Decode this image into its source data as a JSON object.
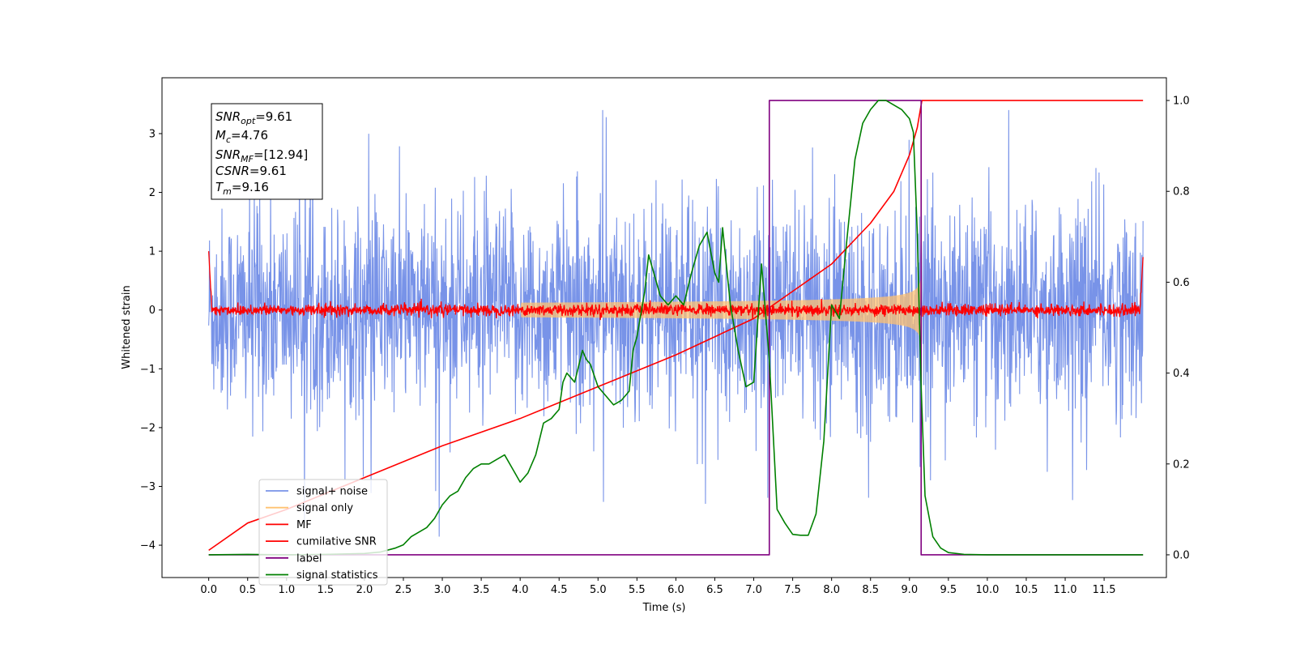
{
  "chart_data": {
    "type": "line",
    "xlabel": "Time (s)",
    "ylabel": "Whitened strain",
    "xlim": [
      -0.6,
      12.3
    ],
    "ylim": [
      -4.55,
      3.95
    ],
    "y2lim": [
      -0.05,
      1.05
    ],
    "x_ticks": [
      "0.0",
      "0.5",
      "1.0",
      "1.5",
      "2.0",
      "2.5",
      "3.0",
      "3.5",
      "4.0",
      "4.5",
      "5.0",
      "5.5",
      "6.0",
      "6.5",
      "7.0",
      "7.5",
      "8.0",
      "8.5",
      "9.0",
      "9.5",
      "10.0",
      "10.5",
      "11.0",
      "11.5"
    ],
    "y_ticks": [
      "3",
      "2",
      "1",
      "0",
      "−1",
      "−2",
      "−3",
      "−4"
    ],
    "y2_ticks": [
      "1.0",
      "0.8",
      "0.6",
      "0.4",
      "0.2",
      "0.0"
    ],
    "grid": false,
    "legend_position": "lower-left",
    "info_box": {
      "snr_opt_value": "=9.61",
      "mc_value": "=4.76",
      "snr_mf_value": "=[12.94]",
      "csnr_label": "CSNR",
      "csnr_value": "=9.61",
      "tm_value": "=9.16"
    },
    "series": [
      {
        "name": "signal+ noise",
        "color": "#7893e8",
        "axis": "left",
        "kind": "noise",
        "x_range": [
          0,
          12
        ],
        "approx_band": [
          -1.2,
          1.2
        ],
        "approx_extremes": [
          -4.2,
          3.4
        ]
      },
      {
        "name": "signal only",
        "color": "#ffc271",
        "axis": "left",
        "kind": "chirp",
        "x_range": [
          0,
          9.16
        ],
        "peak_amplitude": 0.7
      },
      {
        "name": "MF",
        "color": "#ff0000",
        "axis": "left",
        "kind": "noise",
        "x_range": [
          0,
          12
        ],
        "approx_band": [
          -0.1,
          0.1
        ],
        "edge_values": [
          1.0,
          0.9
        ]
      },
      {
        "name": "cumilative SNR",
        "color": "#ff0000",
        "axis": "right",
        "x": [
          0.0,
          0.5,
          1.0,
          2.0,
          3.0,
          4.0,
          5.0,
          6.0,
          6.5,
          7.0,
          7.5,
          8.0,
          8.5,
          8.8,
          9.0,
          9.1,
          9.16,
          12.0
        ],
        "values": [
          0.01,
          0.07,
          0.1,
          0.17,
          0.24,
          0.3,
          0.37,
          0.44,
          0.48,
          0.52,
          0.58,
          0.64,
          0.73,
          0.8,
          0.88,
          0.94,
          1.0,
          1.0
        ]
      },
      {
        "name": "label",
        "color": "#800080",
        "axis": "right",
        "x": [
          0.0,
          7.2,
          7.2,
          9.15,
          9.15,
          12.0
        ],
        "values": [
          0.0,
          0.0,
          1.0,
          1.0,
          0.0,
          0.0
        ]
      },
      {
        "name": "signal statistics",
        "color": "#008000",
        "axis": "right",
        "x": [
          0.0,
          0.5,
          1.0,
          1.5,
          2.0,
          2.2,
          2.4,
          2.5,
          2.6,
          2.8,
          2.9,
          3.0,
          3.1,
          3.2,
          3.3,
          3.4,
          3.5,
          3.6,
          3.7,
          3.8,
          3.9,
          4.0,
          4.1,
          4.2,
          4.3,
          4.4,
          4.5,
          4.55,
          4.6,
          4.7,
          4.8,
          4.85,
          4.9,
          5.0,
          5.1,
          5.2,
          5.3,
          5.4,
          5.45,
          5.5,
          5.6,
          5.65,
          5.7,
          5.8,
          5.9,
          6.0,
          6.1,
          6.2,
          6.3,
          6.4,
          6.5,
          6.55,
          6.6,
          6.7,
          6.8,
          6.9,
          7.0,
          7.1,
          7.2,
          7.3,
          7.4,
          7.5,
          7.6,
          7.7,
          7.8,
          7.9,
          8.0,
          8.1,
          8.2,
          8.3,
          8.4,
          8.5,
          8.6,
          8.7,
          8.8,
          8.9,
          9.0,
          9.05,
          9.1,
          9.15,
          9.2,
          9.3,
          9.4,
          9.5,
          9.7,
          10.0,
          12.0
        ],
        "values": [
          0.0,
          0.001,
          0.0,
          0.001,
          0.003,
          0.006,
          0.015,
          0.022,
          0.04,
          0.06,
          0.08,
          0.11,
          0.13,
          0.14,
          0.17,
          0.19,
          0.2,
          0.2,
          0.21,
          0.22,
          0.19,
          0.16,
          0.18,
          0.22,
          0.29,
          0.3,
          0.32,
          0.38,
          0.4,
          0.38,
          0.45,
          0.43,
          0.42,
          0.37,
          0.35,
          0.33,
          0.34,
          0.36,
          0.45,
          0.48,
          0.58,
          0.66,
          0.63,
          0.57,
          0.55,
          0.57,
          0.55,
          0.62,
          0.68,
          0.71,
          0.62,
          0.6,
          0.72,
          0.55,
          0.45,
          0.37,
          0.38,
          0.64,
          0.43,
          0.1,
          0.07,
          0.045,
          0.043,
          0.043,
          0.09,
          0.25,
          0.55,
          0.52,
          0.7,
          0.87,
          0.95,
          0.98,
          1.0,
          1.0,
          0.99,
          0.98,
          0.96,
          0.93,
          0.71,
          0.37,
          0.13,
          0.04,
          0.015,
          0.005,
          0.001,
          0.0,
          0.0
        ]
      }
    ]
  }
}
